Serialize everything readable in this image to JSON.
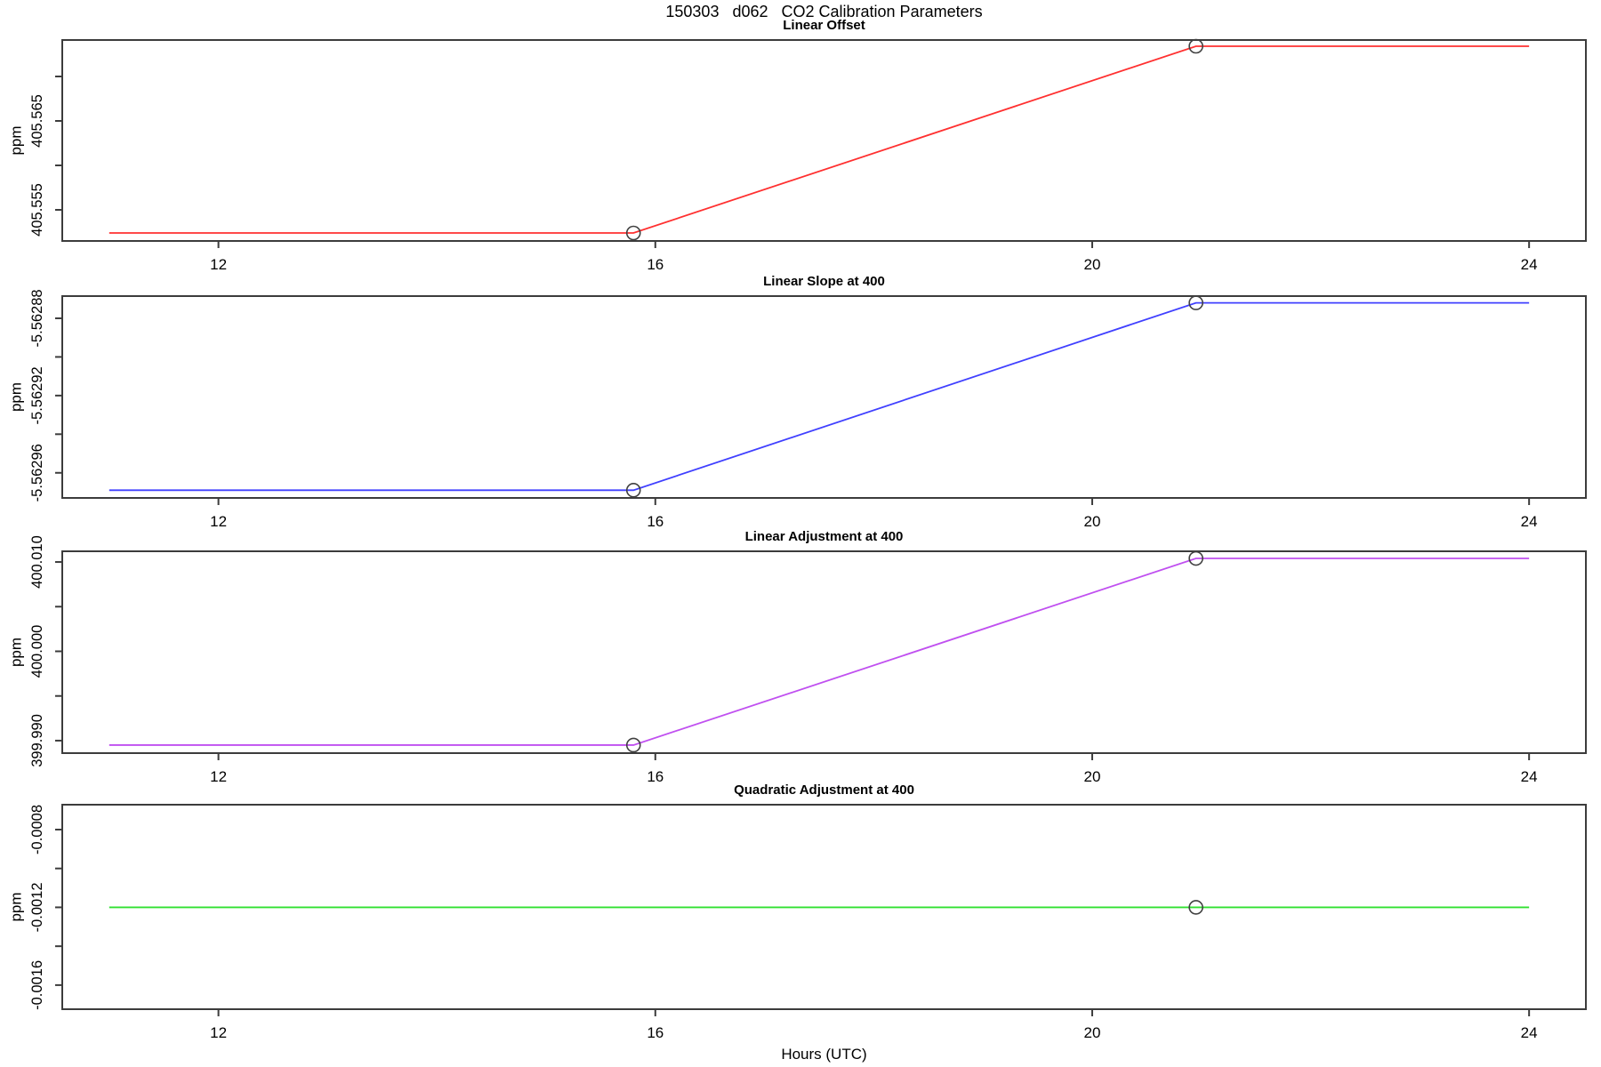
{
  "title": "150303   d062   CO2 Calibration Parameters",
  "x_axis": {
    "label": "Hours (UTC)",
    "ticks": [
      12,
      16,
      20,
      24
    ],
    "range": [
      10.57,
      24.52
    ]
  },
  "chart_data": [
    {
      "type": "line",
      "title": "Linear Offset",
      "ylabel": "ppm",
      "color": "#ff3030",
      "x": [
        11.0,
        15.8,
        20.95,
        24.0
      ],
      "y": [
        405.5524,
        405.5524,
        405.5734,
        405.5734
      ],
      "markers": [
        [
          15.8,
          405.5524
        ],
        [
          20.95,
          405.5734
        ]
      ],
      "ylim": [
        405.5515,
        405.5741
      ],
      "yticks": [
        {
          "value": 405.57,
          "label": ""
        },
        {
          "value": 405.565,
          "label": "405.565"
        },
        {
          "value": 405.56,
          "label": ""
        },
        {
          "value": 405.555,
          "label": "405.555"
        }
      ]
    },
    {
      "type": "line",
      "title": "Linear Slope at 400",
      "ylabel": "ppm",
      "color": "#4040ff",
      "x": [
        11.0,
        15.8,
        20.95,
        24.0
      ],
      "y": [
        -5.562969,
        -5.562969,
        -5.562872,
        -5.562872
      ],
      "markers": [
        [
          15.8,
          -5.562969
        ],
        [
          20.95,
          -5.562872
        ]
      ],
      "ylim": [
        -5.562973,
        -5.5628685
      ],
      "yticks": [
        {
          "value": -5.56288,
          "label": "-5.56288"
        },
        {
          "value": -5.5629,
          "label": ""
        },
        {
          "value": -5.56292,
          "label": "-5.56292"
        },
        {
          "value": -5.56294,
          "label": ""
        },
        {
          "value": -5.56296,
          "label": "-5.56296"
        }
      ]
    },
    {
      "type": "line",
      "title": "Linear Adjustment at 400",
      "ylabel": "ppm",
      "color": "#c050f0",
      "x": [
        11.0,
        15.8,
        20.95,
        24.0
      ],
      "y": [
        399.9895,
        399.9895,
        400.0104,
        400.0104
      ],
      "markers": [
        [
          15.8,
          399.9895
        ],
        [
          20.95,
          400.0104
        ]
      ],
      "ylim": [
        399.9886,
        400.0112
      ],
      "yticks": [
        {
          "value": 400.01,
          "label": "400.010"
        },
        {
          "value": 400.005,
          "label": ""
        },
        {
          "value": 400.0,
          "label": "400.000"
        },
        {
          "value": 399.995,
          "label": ""
        },
        {
          "value": 399.99,
          "label": "399.990"
        }
      ]
    },
    {
      "type": "line",
      "title": "Quadratic Adjustment at 400",
      "ylabel": "ppm",
      "color": "#30e030",
      "x": [
        11.0,
        20.95,
        24.0
      ],
      "y": [
        -0.0012,
        -0.0012,
        -0.0012
      ],
      "markers": [
        [
          20.95,
          -0.0012
        ]
      ],
      "ylim": [
        -0.001724,
        -0.000672
      ],
      "yticks": [
        {
          "value": -0.0008,
          "label": "-0.0008"
        },
        {
          "value": -0.001,
          "label": ""
        },
        {
          "value": -0.0012,
          "label": "-0.0012"
        },
        {
          "value": -0.0014,
          "label": ""
        },
        {
          "value": -0.0016,
          "label": "-0.0016"
        }
      ]
    }
  ]
}
